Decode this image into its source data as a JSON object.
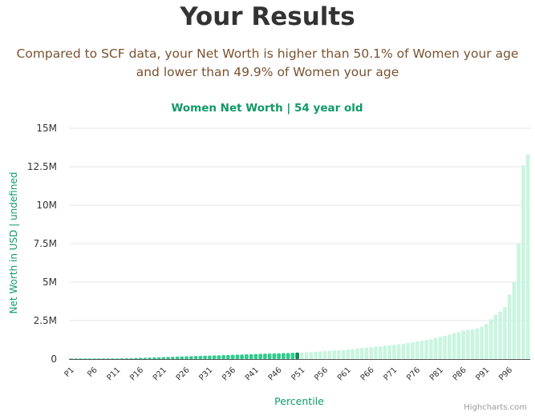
{
  "page": {
    "headline": "Your Results",
    "summary_line1": "Compared to SCF data, your Net Worth is higher than 50.1% of Women your age",
    "summary_line2": "and lower than 49.9% of Women your age",
    "credits": "Highcharts.com"
  },
  "colors": {
    "below_bar": "#2ecc8f",
    "highlight_bar": "#0e8a5a",
    "above_bar": "#c9f5e0",
    "title": "#109a67",
    "axis_text": "#333333",
    "grid": "#e6e6e6"
  },
  "chart_data": {
    "type": "bar",
    "title": "Women Net Worth | 54 year old",
    "xlabel": "Percentile",
    "ylabel": "Net Worth in USD | undefined",
    "ylim": [
      0,
      15000000
    ],
    "ytick_values": [
      0,
      2500000,
      5000000,
      7500000,
      10000000,
      12500000,
      15000000
    ],
    "ytick_labels": [
      "0",
      "2.5M",
      "5M",
      "7.5M",
      "10M",
      "12.5M",
      "15M"
    ],
    "categories": [
      "P1",
      "P2",
      "P3",
      "P4",
      "P5",
      "P6",
      "P7",
      "P8",
      "P9",
      "P10",
      "P11",
      "P12",
      "P13",
      "P14",
      "P15",
      "P16",
      "P17",
      "P18",
      "P19",
      "P20",
      "P21",
      "P22",
      "P23",
      "P24",
      "P25",
      "P26",
      "P27",
      "P28",
      "P29",
      "P30",
      "P31",
      "P32",
      "P33",
      "P34",
      "P35",
      "P36",
      "P37",
      "P38",
      "P39",
      "P40",
      "P41",
      "P42",
      "P43",
      "P44",
      "P45",
      "P46",
      "P47",
      "P48",
      "P49",
      "P50",
      "P51",
      "P52",
      "P53",
      "P54",
      "P55",
      "P56",
      "P57",
      "P58",
      "P59",
      "P60",
      "P61",
      "P62",
      "P63",
      "P64",
      "P65",
      "P66",
      "P67",
      "P68",
      "P69",
      "P70",
      "P71",
      "P72",
      "P73",
      "P74",
      "P75",
      "P76",
      "P77",
      "P78",
      "P79",
      "P80",
      "P81",
      "P82",
      "P83",
      "P84",
      "P85",
      "P86",
      "P87",
      "P88",
      "P89",
      "P90",
      "P91",
      "P92",
      "P93",
      "P94",
      "P95",
      "P96",
      "P97",
      "P98",
      "P99",
      "P100"
    ],
    "xtick_labels": [
      "P1",
      "P6",
      "P11",
      "P16",
      "P21",
      "P26",
      "P31",
      "P36",
      "P41",
      "P46",
      "P51",
      "P56",
      "P61",
      "P66",
      "P71",
      "P76",
      "P81",
      "P86",
      "P91",
      "P96"
    ],
    "highlight_index": 49,
    "values": [
      0,
      0,
      0,
      5000,
      10000,
      15000,
      20000,
      25000,
      30000,
      35000,
      40000,
      45000,
      50000,
      60000,
      70000,
      80000,
      90000,
      100000,
      110000,
      120000,
      130000,
      140000,
      150000,
      160000,
      170000,
      180000,
      190000,
      200000,
      210000,
      220000,
      230000,
      240000,
      250000,
      260000,
      270000,
      280000,
      290000,
      300000,
      310000,
      320000,
      330000,
      340000,
      350000,
      360000,
      370000,
      380000,
      390000,
      400000,
      410000,
      420000,
      430000,
      440000,
      460000,
      480000,
      500000,
      520000,
      540000,
      560000,
      580000,
      600000,
      630000,
      660000,
      690000,
      720000,
      750000,
      780000,
      810000,
      840000,
      870000,
      900000,
      930000,
      960000,
      1000000,
      1050000,
      1100000,
      1150000,
      1200000,
      1250000,
      1300000,
      1380000,
      1450000,
      1520000,
      1600000,
      1680000,
      1760000,
      1850000,
      1900000,
      1950000,
      2000000,
      2100000,
      2300000,
      2600000,
      2900000,
      3100000,
      3400000,
      4200000,
      5000000,
      7500000,
      12600000,
      13300000
    ]
  }
}
